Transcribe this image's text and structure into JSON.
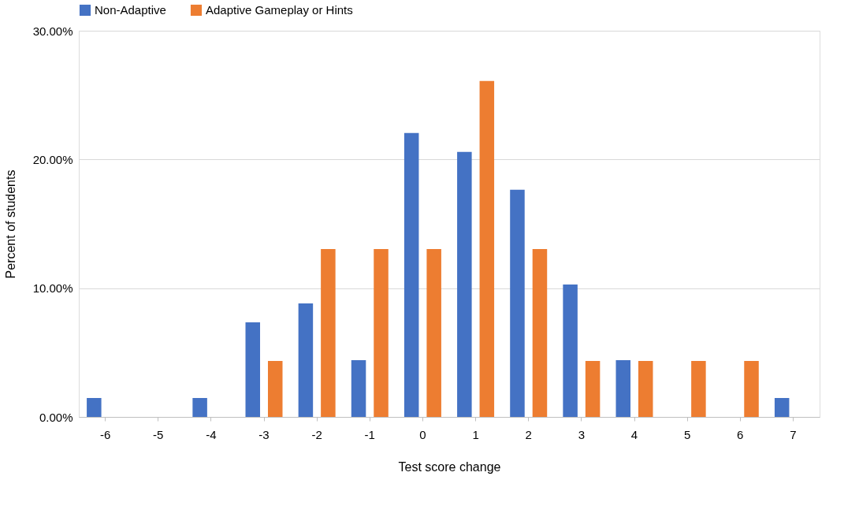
{
  "chart_data": {
    "type": "bar",
    "xlabel": "Test score change",
    "ylabel": "Percent of students",
    "categories": [
      "-6",
      "-5",
      "-4",
      "-3",
      "-2",
      "-1",
      "0",
      "1",
      "2",
      "3",
      "4",
      "5",
      "6",
      "7"
    ],
    "series": [
      {
        "name": "Non-Adaptive",
        "color": "#4472c4",
        "values": [
          1.47,
          0,
          1.47,
          7.35,
          8.82,
          4.41,
          22.06,
          20.59,
          17.65,
          10.29,
          4.41,
          0,
          0,
          1.47
        ]
      },
      {
        "name": "Adaptive Gameplay or Hints",
        "color": "#ed7d31",
        "values": [
          0,
          0,
          0,
          4.35,
          13.04,
          13.04,
          13.04,
          26.09,
          13.04,
          4.35,
          4.35,
          4.35,
          4.35,
          0
        ]
      }
    ],
    "ylim": [
      0,
      30
    ],
    "yticks": [
      {
        "value": 0,
        "label": "0.00%"
      },
      {
        "value": 10,
        "label": "10.00%"
      },
      {
        "value": 20,
        "label": "20.00%"
      },
      {
        "value": 30,
        "label": "30.00%"
      }
    ],
    "grid": "y",
    "legend": "top"
  }
}
